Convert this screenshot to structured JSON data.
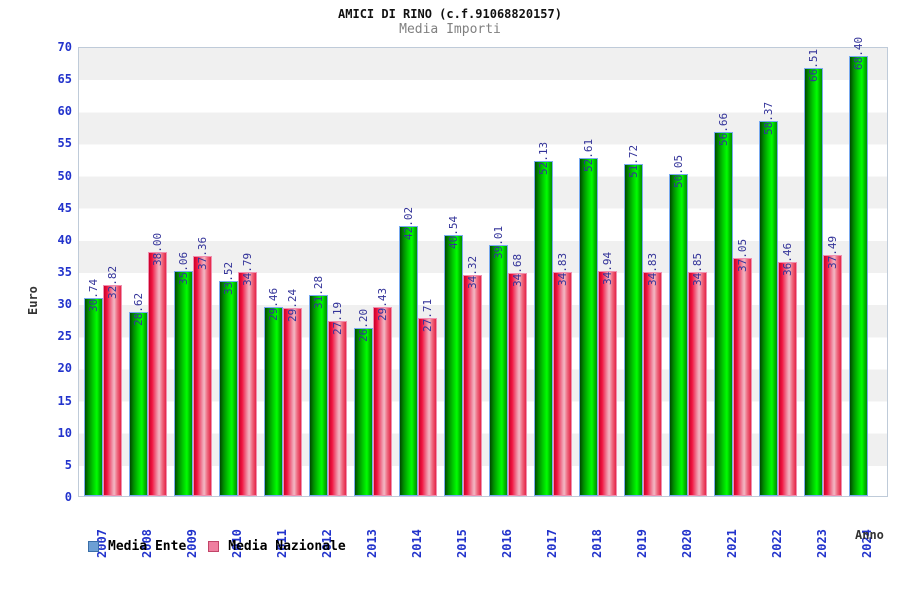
{
  "header": {
    "title": "AMICI DI RINO (c.f.91068820157)",
    "subtitle": "Media Importi"
  },
  "chart_data": {
    "type": "bar",
    "title": "AMICI DI RINO (c.f.91068820157)",
    "subtitle": "Media Importi",
    "xlabel": "Anno",
    "ylabel": "Euro",
    "ylim": [
      0,
      70
    ],
    "ytick_step": 5,
    "grid": "horizontal-bands-alternating",
    "band_colors": [
      "#f0f0f0",
      "#ffffff"
    ],
    "legend_position": "bottom-left",
    "value_labels": "rotated-90-above-bars, two decimals",
    "categories": [
      "2007",
      "2008",
      "2009",
      "2010",
      "2011",
      "2012",
      "2013",
      "2014",
      "2015",
      "2016",
      "2017",
      "2018",
      "2019",
      "2020",
      "2021",
      "2022",
      "2023",
      "2024"
    ],
    "series": [
      {
        "name": "Media Ente",
        "legend_color": "#6d9fd4",
        "bar_color": "green-gradient-cylinder",
        "values": [
          30.74,
          28.62,
          35.06,
          33.52,
          29.46,
          31.28,
          26.2,
          42.02,
          40.54,
          39.01,
          52.13,
          52.61,
          51.72,
          50.05,
          56.66,
          58.37,
          66.51,
          68.4
        ]
      },
      {
        "name": "Media Nazionale",
        "legend_color": "#ef7f9f",
        "bar_color": "red-gradient-cylinder",
        "values": [
          32.82,
          38.0,
          37.36,
          34.79,
          29.24,
          27.19,
          29.43,
          27.71,
          34.32,
          34.68,
          34.83,
          34.94,
          34.83,
          34.85,
          37.05,
          36.46,
          37.49,
          null
        ]
      }
    ]
  },
  "colors": {
    "axis_tick_text": "#2233cc",
    "value_label_text": "#333399",
    "subtitle_text": "#808080",
    "plot_border": "#bfcbd9",
    "band_gray": "#f0f0f0"
  }
}
